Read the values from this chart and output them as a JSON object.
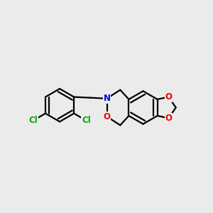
{
  "bg_color": "#ebebeb",
  "bond_color": "#000000",
  "bond_width": 1.6,
  "atom_colors": {
    "Cl": "#00aa00",
    "N": "#0000ee",
    "O": "#ee0000",
    "C": "#000000"
  },
  "font_size": 8.5,
  "bl": 0.075
}
